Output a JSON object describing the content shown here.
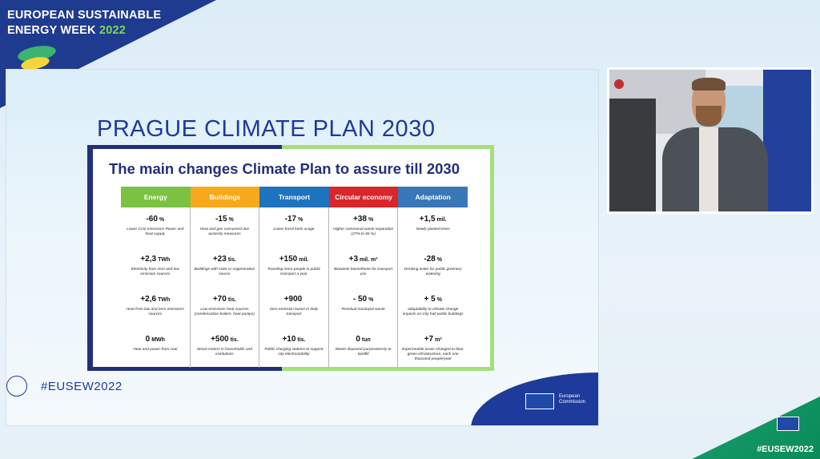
{
  "event": {
    "title_line1": "EUROPEAN SUSTAINABLE",
    "title_line2": "ENERGY WEEK",
    "year": "2022"
  },
  "slide": {
    "title": "PRAGUE CLIMATE PLAN 2030",
    "subtitle": "The main changes Climate Plan to assure till 2030",
    "hashtag": "#EUSEW2022",
    "ec_label_line1": "European",
    "ec_label_line2": "Commission",
    "headers": [
      "Energy",
      "Buildings",
      "Transport",
      "Circular economy",
      "Adaptation"
    ],
    "header_colors": [
      "#7cc242",
      "#f7a81b",
      "#1e73be",
      "#d9262b",
      "#3a77b8"
    ],
    "rows": [
      [
        {
          "value": "-60",
          "unit": "%",
          "desc": "Lower CO2 emissions Power and heat supply"
        },
        {
          "value": "-15",
          "unit": "%",
          "desc": "Heat and gas consumed due austerity measures"
        },
        {
          "value": "-17",
          "unit": "%",
          "desc": "Lower fossil fuels usage"
        },
        {
          "value": "+38",
          "unit": "%",
          "desc": "Higher communal waste separation (27% to 65 %)"
        },
        {
          "value": "+1,5",
          "unit": "mil.",
          "desc": "Newly planted trees"
        }
      ],
      [
        {
          "value": "+2,3",
          "unit": "TWh",
          "desc": "Electricity from zero and low emission sources"
        },
        {
          "value": "+23",
          "unit": "tis.",
          "desc": "Buildings with solar or cogeneration source"
        },
        {
          "value": "+150",
          "unit": "mil.",
          "desc": "Traveling more people in public transport a year"
        },
        {
          "value": "+3",
          "unit": "mil. m³",
          "desc": "Biowaste biomethane for transport use"
        },
        {
          "value": "-28",
          "unit": "%",
          "desc": "Drinking water for public greenery watering"
        }
      ],
      [
        {
          "value": "+2,6",
          "unit": "TWh",
          "desc": "Heat from low and zero emissions sources"
        },
        {
          "value": "+70",
          "unit": "tis.",
          "desc": "Low emissions heat sources (condensation boilers, heat pumps)"
        },
        {
          "value": "+900",
          "unit": "",
          "desc": "Zero emission buses in daily transport"
        },
        {
          "value": "- 50",
          "unit": "%",
          "desc": "Residual municipal waste"
        },
        {
          "value": "+ 5",
          "unit": "%",
          "desc": "adaptability to climate change impacts on City hall public buildings"
        }
      ],
      [
        {
          "value": "0",
          "unit": "MWh",
          "desc": "Heat and power from coal"
        },
        {
          "value": "+500",
          "unit": "tis.",
          "desc": "Smart meters in households and institutions"
        },
        {
          "value": "+10",
          "unit": "tis.",
          "desc": "Public charging stations to support city electromobility"
        },
        {
          "value": "0",
          "unit": "tun",
          "desc": "Waste disposed purposelessly to landfill"
        },
        {
          "value": "+7",
          "unit": "m²",
          "desc": "Impermeable areas changed to blue-green infrastructure, each one thousand people/year"
        }
      ]
    ]
  },
  "overlay": {
    "hashtag": "#EUSEW2022"
  }
}
